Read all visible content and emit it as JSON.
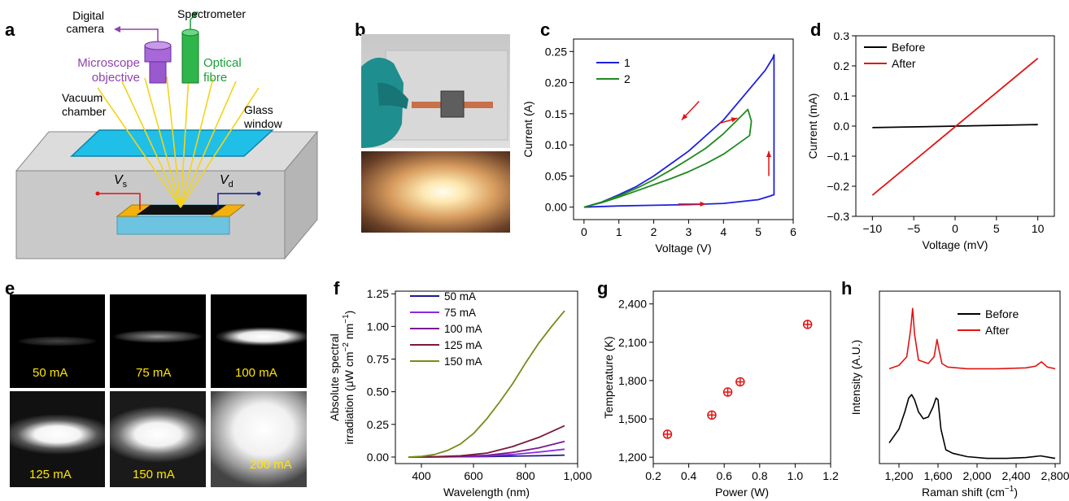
{
  "panel_labels": {
    "a": "a",
    "b": "b",
    "c": "c",
    "d": "d",
    "e": "e",
    "f": "f",
    "g": "g",
    "h": "h"
  },
  "schematic": {
    "digital_camera": [
      "Digital",
      "camera"
    ],
    "spectrometer": "Spectrometer",
    "microscope": [
      "Microscope",
      "objective"
    ],
    "optical": [
      "Optical",
      "fibre"
    ],
    "vacuum": [
      "Vacuum",
      "chamber"
    ],
    "glass": [
      "Glass",
      "window"
    ],
    "vs": "V",
    "vs_sub": "s",
    "vd": "V",
    "vd_sub": "d",
    "colors": {
      "microscope": "#8e44ad",
      "optical": "#1a9e3a",
      "window": "#1fbfe8",
      "rays": "#f2d41b",
      "chamber": "#c9c9c9"
    }
  },
  "glow_images": [
    "50 mA",
    "75 mA",
    "100 mA",
    "125 mA",
    "150 mA",
    "200 mA"
  ],
  "chart_data": [
    {
      "id": "c",
      "type": "line",
      "xlabel": "Voltage (V)",
      "ylabel": "Current (A)",
      "xlim": [
        -0.3,
        6
      ],
      "ylim": [
        -0.02,
        0.27
      ],
      "xticks": [
        0,
        1,
        2,
        3,
        4,
        5,
        6
      ],
      "yticks": [
        0.0,
        0.05,
        0.1,
        0.15,
        0.2,
        0.25
      ],
      "ytick_labels": [
        "0.00",
        "0.05",
        "0.10",
        "0.15",
        "0.20",
        "0.25"
      ],
      "legend": "top-left",
      "series": [
        {
          "name": "1",
          "color": "#1f1fe0",
          "x": [
            0,
            1,
            2,
            3,
            4,
            5,
            5.35,
            5.45,
            5.45,
            5.45,
            5.42,
            5.2,
            4.6,
            4.0,
            3.4,
            3.0,
            2.5,
            2.0,
            1.5,
            1.0,
            0.5,
            0
          ],
          "y": [
            0,
            0.002,
            0.003,
            0.004,
            0.006,
            0.012,
            0.018,
            0.02,
            0.13,
            0.245,
            0.24,
            0.22,
            0.18,
            0.14,
            0.11,
            0.09,
            0.07,
            0.05,
            0.033,
            0.02,
            0.008,
            0
          ]
        },
        {
          "name": "2",
          "color": "#1f8a1f",
          "x": [
            0,
            0.5,
            1,
            1.5,
            2,
            2.5,
            3,
            3.5,
            4,
            4.5,
            4.75,
            4.8,
            4.7,
            4.4,
            4.0,
            3.5,
            3.0,
            2.5,
            2.0,
            1.5,
            1.0,
            0.5,
            0
          ],
          "y": [
            0,
            0.007,
            0.016,
            0.026,
            0.036,
            0.046,
            0.057,
            0.07,
            0.085,
            0.105,
            0.115,
            0.138,
            0.157,
            0.14,
            0.118,
            0.095,
            0.077,
            0.06,
            0.044,
            0.03,
            0.018,
            0.008,
            0
          ]
        }
      ],
      "arrows": [
        {
          "from": [
            3.3,
            0.17
          ],
          "to": [
            2.8,
            0.14
          ]
        },
        {
          "from": [
            3.9,
            0.135
          ],
          "to": [
            4.4,
            0.143
          ]
        },
        {
          "from": [
            2.7,
            0.005
          ],
          "to": [
            3.5,
            0.005
          ]
        },
        {
          "from": [
            5.3,
            0.05
          ],
          "to": [
            5.3,
            0.09
          ]
        }
      ]
    },
    {
      "id": "d",
      "type": "line",
      "xlabel": "Voltage (mV)",
      "ylabel": "Current (mA)",
      "xlim": [
        -12,
        12
      ],
      "ylim": [
        -0.3,
        0.3
      ],
      "xticks": [
        -10,
        -5,
        0,
        5,
        10
      ],
      "xtick_labels": [
        "−10",
        "−5",
        "0",
        "5",
        "10"
      ],
      "yticks": [
        -0.3,
        -0.2,
        -0.1,
        0.0,
        0.1,
        0.2,
        0.3
      ],
      "ytick_labels": [
        "−0.3",
        "−0.2",
        "−0.1",
        "0.0",
        "0.1",
        "0.2",
        "0.3"
      ],
      "legend": "top-left",
      "series": [
        {
          "name": "Before",
          "color": "#000000",
          "x": [
            -10,
            10
          ],
          "y": [
            -0.005,
            0.005
          ]
        },
        {
          "name": "After",
          "color": "#e01414",
          "x": [
            -10,
            10
          ],
          "y": [
            -0.23,
            0.225
          ]
        }
      ]
    },
    {
      "id": "f",
      "type": "line",
      "xlabel": "Wavelength (nm)",
      "ylabel_lines": [
        "Absolute spectral",
        "irradiation (μW cm",
        "−2",
        " nm",
        "−1",
        ")"
      ],
      "xlim": [
        300,
        1000
      ],
      "ylim": [
        -0.05,
        1.27
      ],
      "xticks": [
        400,
        600,
        800,
        1000
      ],
      "xtick_labels": [
        "400",
        "600",
        "800",
        "1,000"
      ],
      "yticks": [
        0.0,
        0.25,
        0.5,
        0.75,
        1.0,
        1.25
      ],
      "ytick_labels": [
        "0.00",
        "0.25",
        "0.50",
        "0.75",
        "1.00",
        "1.25"
      ],
      "legend": "top-left",
      "series": [
        {
          "name": "50 mA",
          "color": "#1b1b8f",
          "x": [
            350,
            450,
            550,
            650,
            750,
            850,
            950
          ],
          "y": [
            0,
            0.001,
            0.002,
            0.004,
            0.007,
            0.01,
            0.015
          ]
        },
        {
          "name": "75 mA",
          "color": "#8a2be2",
          "x": [
            350,
            450,
            550,
            650,
            750,
            850,
            950
          ],
          "y": [
            0,
            0.001,
            0.003,
            0.008,
            0.02,
            0.038,
            0.06
          ]
        },
        {
          "name": "100 mA",
          "color": "#7a1a8f",
          "x": [
            350,
            450,
            550,
            650,
            750,
            850,
            950
          ],
          "y": [
            0,
            0.002,
            0.005,
            0.013,
            0.035,
            0.07,
            0.12
          ]
        },
        {
          "name": "125 mA",
          "color": "#7a1a3a",
          "x": [
            350,
            450,
            550,
            650,
            750,
            850,
            950
          ],
          "y": [
            0,
            0.003,
            0.01,
            0.03,
            0.08,
            0.15,
            0.24
          ]
        },
        {
          "name": "150 mA",
          "color": "#7a8a1a",
          "x": [
            350,
            400,
            450,
            500,
            550,
            600,
            650,
            700,
            750,
            800,
            850,
            900,
            950
          ],
          "y": [
            0,
            0.005,
            0.02,
            0.05,
            0.1,
            0.18,
            0.29,
            0.42,
            0.56,
            0.72,
            0.87,
            1.0,
            1.12
          ]
        }
      ]
    },
    {
      "id": "g",
      "type": "scatter",
      "xlabel": "Power (W)",
      "ylabel": "Temperature (K)",
      "xlim": [
        0.2,
        1.2
      ],
      "ylim": [
        1150,
        2500
      ],
      "xticks": [
        0.2,
        0.4,
        0.6,
        0.8,
        1.0,
        1.2
      ],
      "xtick_labels": [
        "0.2",
        "0.4",
        "0.6",
        "0.8",
        "1.0",
        "1.2"
      ],
      "yticks": [
        1200,
        1500,
        1800,
        2100,
        2400
      ],
      "ytick_labels": [
        "1,200",
        "1,500",
        "1,800",
        "2,100",
        "2,400"
      ],
      "marker_color": "#e01414",
      "x": [
        0.28,
        0.53,
        0.62,
        0.69,
        1.07
      ],
      "y": [
        1380,
        1530,
        1710,
        1790,
        2240
      ]
    },
    {
      "id": "h",
      "type": "line",
      "xlabel": "Raman shift (cm",
      "xlabel_sup": "−1",
      "xlabel_end": ")",
      "ylabel": "Intensity (A.U.)",
      "xlim": [
        1000,
        2850
      ],
      "ylim": [
        0,
        1
      ],
      "xticks": [
        1200,
        1600,
        2000,
        2400,
        2800
      ],
      "xtick_labels": [
        "1,200",
        "1,600",
        "2,000",
        "2,400",
        "2,800"
      ],
      "legend": "top-right",
      "series": [
        {
          "name": "Before",
          "color": "#000000",
          "x": [
            1100,
            1200,
            1260,
            1300,
            1330,
            1360,
            1400,
            1450,
            1500,
            1550,
            1580,
            1600,
            1630,
            1680,
            1750,
            1900,
            2100,
            2300,
            2500,
            2650,
            2750,
            2800
          ],
          "y": [
            0.12,
            0.2,
            0.3,
            0.38,
            0.4,
            0.37,
            0.3,
            0.26,
            0.27,
            0.33,
            0.38,
            0.37,
            0.2,
            0.08,
            0.06,
            0.04,
            0.03,
            0.03,
            0.035,
            0.045,
            0.035,
            0.03
          ]
        },
        {
          "name": "After",
          "color": "#e01414",
          "x": [
            1100,
            1200,
            1280,
            1320,
            1340,
            1360,
            1400,
            1500,
            1560,
            1590,
            1610,
            1640,
            1700,
            1900,
            2200,
            2500,
            2600,
            2660,
            2720,
            2800
          ],
          "y": [
            0.55,
            0.57,
            0.62,
            0.78,
            0.9,
            0.75,
            0.6,
            0.58,
            0.62,
            0.72,
            0.66,
            0.58,
            0.56,
            0.55,
            0.55,
            0.555,
            0.565,
            0.59,
            0.56,
            0.55
          ]
        }
      ]
    }
  ]
}
